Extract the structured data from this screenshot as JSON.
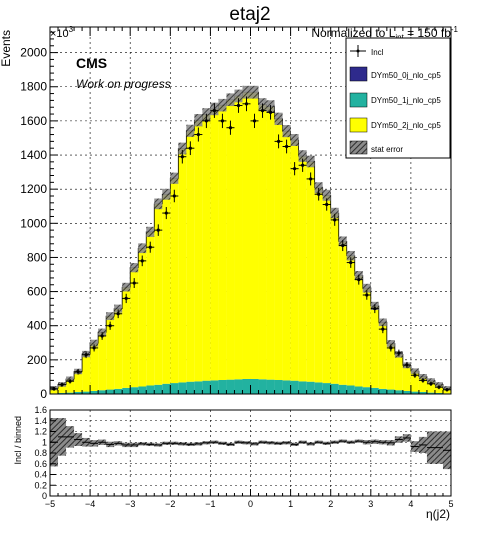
{
  "title": "etaj2",
  "lumi_label": "Normalized to L",
  "lumi_sub": "int",
  "lumi_eq": " = 150 fb",
  "lumi_sup": "-1",
  "cms_label": "CMS",
  "cms_sublabel": "Work on progress",
  "chart_data": [
    {
      "type": "bar",
      "stacked": true,
      "xlabel": "η(j2)",
      "ylabel": "Events",
      "y_multiplier_label": "×10",
      "y_multiplier_exp": "3",
      "xlim": [
        -5,
        5
      ],
      "ylim": [
        0,
        2150
      ],
      "x_ticks": [
        "−5",
        "−4",
        "−3",
        "−2",
        "−1",
        "0",
        "1",
        "2",
        "3",
        "4",
        "5"
      ],
      "y_ticks": [
        "0",
        "200",
        "400",
        "600",
        "800",
        "1000",
        "1200",
        "1400",
        "1600",
        "1800",
        "2000"
      ],
      "grid": true,
      "legend_position": "top-right",
      "legend": [
        "Incl",
        "DYm50_0j_nlo_cp5",
        "DYm50_1j_nlo_cp5",
        "DYm50_2j_nlo_cp5",
        "stat error"
      ],
      "colors": {
        "DYm50_0j_nlo_cp5": "#2e2a8c",
        "DYm50_1j_nlo_cp5": "#22b2a0",
        "DYm50_2j_nlo_cp5": "#ffff00",
        "stat_error": "#555555"
      },
      "bin_edges": [
        -5.0,
        -4.8,
        -4.6,
        -4.4,
        -4.2,
        -4.0,
        -3.8,
        -3.6,
        -3.4,
        -3.2,
        -3.0,
        -2.8,
        -2.6,
        -2.4,
        -2.2,
        -2.0,
        -1.8,
        -1.6,
        -1.4,
        -1.2,
        -1.0,
        -0.8,
        -0.6,
        -0.4,
        -0.2,
        0.0,
        0.2,
        0.4,
        0.6,
        0.8,
        1.0,
        1.2,
        1.4,
        1.6,
        1.8,
        2.0,
        2.2,
        2.4,
        2.6,
        2.8,
        3.0,
        3.2,
        3.4,
        3.6,
        3.8,
        4.0,
        4.2,
        4.4,
        4.6,
        4.8,
        5.0
      ],
      "series": [
        {
          "name": "DYm50_0j_nlo_cp5",
          "values": [
            0,
            0,
            0,
            0,
            0,
            0,
            0,
            0,
            0,
            0,
            0,
            0,
            0,
            0,
            0,
            0,
            0,
            0,
            0,
            0,
            0,
            0,
            0,
            0,
            0,
            0,
            0,
            0,
            0,
            0,
            0,
            0,
            0,
            0,
            0,
            0,
            0,
            0,
            0,
            0,
            0,
            0,
            0,
            0,
            0,
            0,
            0,
            0,
            0,
            0
          ]
        },
        {
          "name": "DYm50_1j_nlo_cp5",
          "values": [
            4,
            6,
            8,
            12,
            14,
            18,
            22,
            26,
            30,
            36,
            40,
            44,
            50,
            54,
            60,
            64,
            68,
            72,
            74,
            78,
            80,
            82,
            84,
            86,
            88,
            88,
            86,
            84,
            82,
            80,
            78,
            74,
            72,
            68,
            64,
            60,
            54,
            50,
            44,
            40,
            36,
            30,
            26,
            22,
            18,
            14,
            12,
            8,
            6,
            4
          ]
        },
        {
          "name": "DYm50_2j_nlo_cp5",
          "values": [
            30,
            50,
            80,
            120,
            220,
            280,
            340,
            430,
            470,
            590,
            700,
            810,
            900,
            1060,
            1110,
            1200,
            1370,
            1470,
            1530,
            1560,
            1590,
            1610,
            1640,
            1660,
            1680,
            1680,
            1610,
            1600,
            1530,
            1460,
            1410,
            1320,
            1290,
            1140,
            1100,
            1000,
            840,
            760,
            650,
            580,
            480,
            390,
            270,
            210,
            150,
            120,
            90,
            70,
            50,
            30
          ]
        }
      ],
      "incl_values": [
        30,
        55,
        75,
        130,
        230,
        270,
        340,
        400,
        470,
        560,
        650,
        780,
        860,
        960,
        1060,
        1160,
        1390,
        1440,
        1520,
        1600,
        1660,
        1600,
        1560,
        1690,
        1700,
        1600,
        1660,
        1650,
        1480,
        1450,
        1320,
        1340,
        1260,
        1170,
        1110,
        1020,
        870,
        770,
        670,
        580,
        500,
        380,
        270,
        240,
        170,
        110,
        80,
        60,
        40,
        25
      ]
    },
    {
      "type": "scatter",
      "ylabel": "Incl / binned",
      "xlim": [
        -5,
        5
      ],
      "ylim": [
        0,
        1.6
      ],
      "y_ticks": [
        "0",
        "0.2",
        "0.4",
        "0.6",
        "0.8",
        "1",
        "1.2",
        "1.4",
        "1.6"
      ],
      "x_ticks": [
        "−5",
        "−4",
        "−3",
        "−2",
        "−1",
        "0",
        "1",
        "2",
        "3",
        "4",
        "5"
      ],
      "xlabel": "η(j2)",
      "ratio_values": [
        1.0,
        1.1,
        1.1,
        1.05,
        1.0,
        0.98,
        1.0,
        0.96,
        0.98,
        0.95,
        0.95,
        0.97,
        0.96,
        0.95,
        0.98,
        0.98,
        0.97,
        0.96,
        0.97,
        0.99,
        1.0,
        0.98,
        0.96,
        1.0,
        0.99,
        0.97,
        1.0,
        0.99,
        0.98,
        0.99,
        0.96,
        1.0,
        0.97,
        1.0,
        0.98,
        1.0,
        1.02,
        1.0,
        1.02,
        1.0,
        1.01,
        1.0,
        0.99,
        1.05,
        1.08,
        0.92,
        0.95,
        0.9,
        0.9,
        0.85
      ],
      "ratio_errors": [
        0.45,
        0.35,
        0.2,
        0.12,
        0.08,
        0.06,
        0.05,
        0.05,
        0.04,
        0.04,
        0.04,
        0.03,
        0.03,
        0.03,
        0.03,
        0.03,
        0.03,
        0.03,
        0.03,
        0.03,
        0.03,
        0.03,
        0.03,
        0.03,
        0.03,
        0.03,
        0.03,
        0.03,
        0.03,
        0.03,
        0.03,
        0.03,
        0.03,
        0.03,
        0.03,
        0.03,
        0.03,
        0.03,
        0.03,
        0.04,
        0.04,
        0.04,
        0.05,
        0.06,
        0.07,
        0.1,
        0.15,
        0.3,
        0.3,
        0.35
      ]
    }
  ]
}
